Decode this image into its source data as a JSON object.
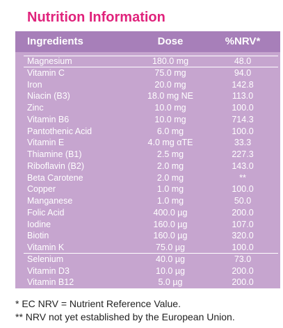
{
  "title": "Nutrition Information",
  "table": {
    "headers": {
      "ingredient": "Ingredients",
      "dose": "Dose",
      "nrv": "%NRV*"
    },
    "rows": [
      {
        "ingredient": "Magnesium",
        "dose": "180.0 mg",
        "nrv": "48.0"
      },
      {
        "ingredient": "Vitamin C",
        "dose": "75.0 mg",
        "nrv": "94.0"
      },
      {
        "ingredient": "Iron",
        "dose": "20.0 mg",
        "nrv": "142.8"
      },
      {
        "ingredient": "Niacin (B3)",
        "dose": "18.0 mg NE",
        "nrv": "113.0"
      },
      {
        "ingredient": "Zinc",
        "dose": "10.0 mg",
        "nrv": "100.0"
      },
      {
        "ingredient": "Vitamin B6",
        "dose": "10.0 mg",
        "nrv": "714.3"
      },
      {
        "ingredient": "Pantothenic Acid",
        "dose": "6.0 mg",
        "nrv": "100.0"
      },
      {
        "ingredient": "Vitamin E",
        "dose": "4.0 mg αTE",
        "nrv": "33.3"
      },
      {
        "ingredient": "Thiamine (B1)",
        "dose": "2.5 mg",
        "nrv": "227.3"
      },
      {
        "ingredient": "Riboflavin (B2)",
        "dose": "2.0 mg",
        "nrv": "143.0"
      },
      {
        "ingredient": "Beta Carotene",
        "dose": "2.0 mg",
        "nrv": "**"
      },
      {
        "ingredient": "Copper",
        "dose": "1.0 mg",
        "nrv": "100.0"
      },
      {
        "ingredient": "Manganese",
        "dose": "1.0 mg",
        "nrv": "50.0"
      },
      {
        "ingredient": "Folic Acid",
        "dose": "400.0 µg",
        "nrv": "200.0"
      },
      {
        "ingredient": "Iodine",
        "dose": "160.0 µg",
        "nrv": "107.0"
      },
      {
        "ingredient": "Biotin",
        "dose": "160.0 µg",
        "nrv": "320.0"
      },
      {
        "ingredient": "Vitamin K",
        "dose": "75.0 µg",
        "nrv": "100.0"
      },
      {
        "ingredient": "Selenium",
        "dose": "40.0 µg",
        "nrv": "73.0"
      },
      {
        "ingredient": "Vitamin D3",
        "dose": "10.0 µg",
        "nrv": "200.0"
      },
      {
        "ingredient": "Vitamin B12",
        "dose": "5.0 µg",
        "nrv": "200.0"
      }
    ]
  },
  "footnotes": [
    "* EC NRV = Nutrient Reference Value.",
    "** NRV not yet established by the European Union."
  ],
  "colors": {
    "title": "#e0237c",
    "header_bg": "#a77fb9",
    "body_bg": "#c6a5cf",
    "text_on_panel": "#ffffff"
  }
}
